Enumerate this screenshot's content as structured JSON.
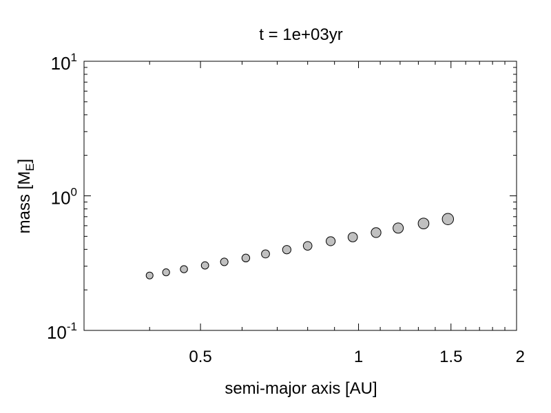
{
  "chart_data": {
    "type": "scatter",
    "title": "t = 1e+03yr",
    "xlabel": "semi-major axis [AU]",
    "ylabel": {
      "main": "mass [M",
      "sub": "E",
      "close": "]"
    },
    "x_scale": "log",
    "y_scale": "log",
    "xlim": [
      0.3,
      2.0
    ],
    "ylim": [
      0.1,
      10
    ],
    "x_ticks": [
      {
        "value": 0.5,
        "label": "0.5"
      },
      {
        "value": 1.0,
        "label": "1"
      },
      {
        "value": 1.5,
        "label": "1.5"
      },
      {
        "value": 2.0,
        "label": "2"
      }
    ],
    "y_ticks": [
      {
        "value": 0.1,
        "base": "10",
        "exp": "-1"
      },
      {
        "value": 1.0,
        "base": "10",
        "exp": "0"
      },
      {
        "value": 10.0,
        "base": "10",
        "exp": "1"
      }
    ],
    "marker_color": "#c0c0c0",
    "marker_edge": "#000000",
    "points": [
      {
        "x": 0.4,
        "y": 0.256
      },
      {
        "x": 0.43,
        "y": 0.27
      },
      {
        "x": 0.465,
        "y": 0.285
      },
      {
        "x": 0.51,
        "y": 0.304
      },
      {
        "x": 0.555,
        "y": 0.323
      },
      {
        "x": 0.61,
        "y": 0.345
      },
      {
        "x": 0.665,
        "y": 0.37
      },
      {
        "x": 0.73,
        "y": 0.398
      },
      {
        "x": 0.8,
        "y": 0.425
      },
      {
        "x": 0.885,
        "y": 0.46
      },
      {
        "x": 0.975,
        "y": 0.493
      },
      {
        "x": 1.08,
        "y": 0.533
      },
      {
        "x": 1.19,
        "y": 0.576
      },
      {
        "x": 1.33,
        "y": 0.623
      },
      {
        "x": 1.48,
        "y": 0.672
      }
    ]
  }
}
